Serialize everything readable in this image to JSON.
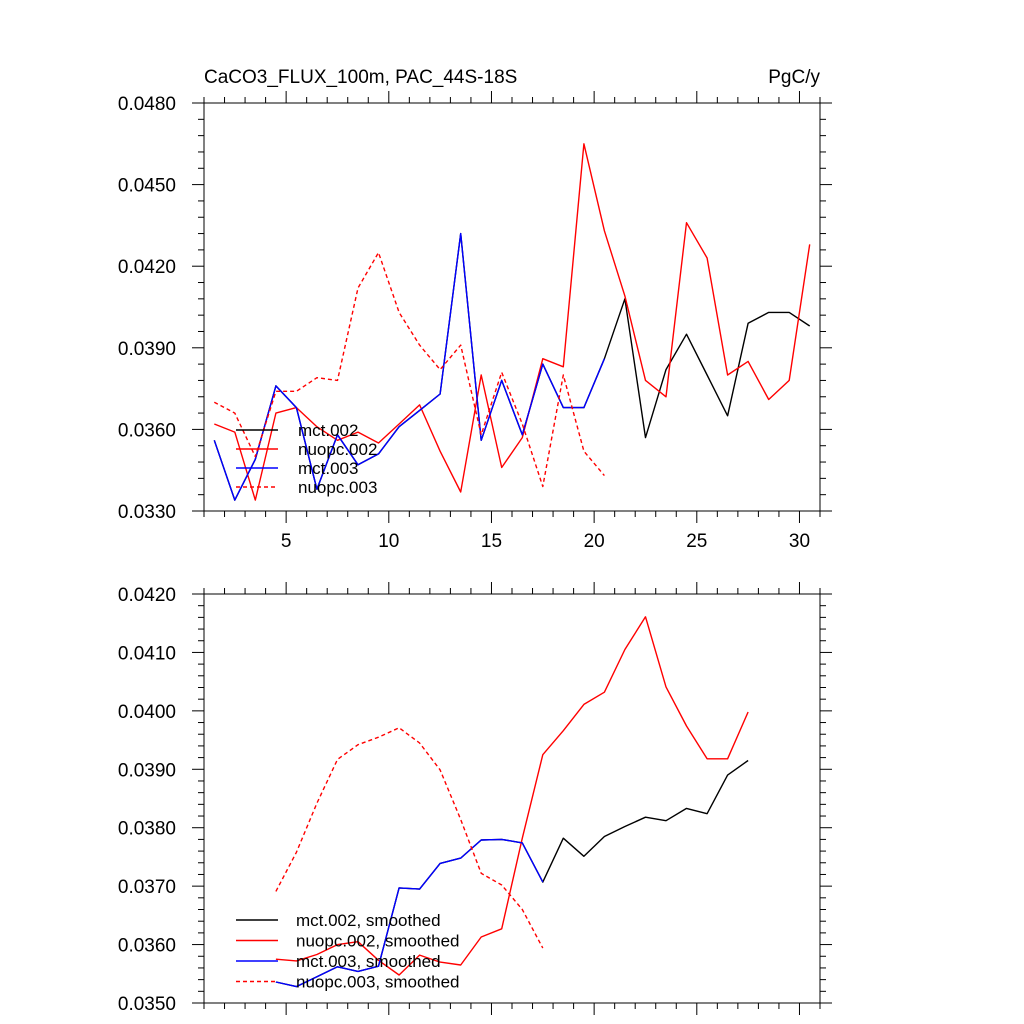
{
  "chart_data": [
    {
      "type": "line",
      "title": "CaCO3_FLUX_100m, PAC_44S-18S",
      "units_label": "PgC/y",
      "xlabel": "",
      "ylabel": "",
      "xlim": [
        1,
        31
      ],
      "ylim": [
        0.033,
        0.048
      ],
      "xticks": [
        5,
        10,
        15,
        20,
        25,
        30
      ],
      "xtick_labels": [
        "5",
        "10",
        "15",
        "20",
        "25",
        "30"
      ],
      "yticks": [
        0.033,
        0.036,
        0.039,
        0.042,
        0.045,
        0.048
      ],
      "ytick_labels": [
        "0.0330",
        "0.0360",
        "0.0390",
        "0.0420",
        "0.0450",
        "0.0480"
      ],
      "grid": false,
      "legend_position": "lower-left",
      "series": [
        {
          "name": "mct.002",
          "color": "#000000",
          "dash": "solid",
          "x": [
            1.5,
            2.5,
            3.5,
            4.5,
            5.5,
            6.5,
            7.5,
            8.5,
            9.5,
            10.5,
            11.5,
            12.5,
            13.5,
            14.5,
            15.5,
            16.5,
            17.5,
            18.5,
            19.5,
            20.5,
            21.5,
            22.5,
            23.5,
            24.5,
            25.5,
            26.5,
            27.5,
            28.5,
            29.5,
            30.5
          ],
          "values": [
            0.0356,
            0.0334,
            0.0349,
            0.0376,
            0.0368,
            0.0338,
            0.0358,
            0.0347,
            0.0351,
            0.0361,
            0.0367,
            0.0373,
            0.0432,
            0.0356,
            0.0378,
            0.0358,
            0.0384,
            0.0368,
            0.0368,
            0.0386,
            0.0408,
            0.0357,
            0.0382,
            0.0395,
            0.038,
            0.0365,
            0.0399,
            0.0403,
            0.0403,
            0.0398
          ]
        },
        {
          "name": "nuopc.002",
          "color": "#ff0000",
          "dash": "solid",
          "x": [
            1.5,
            2.5,
            3.5,
            4.5,
            5.5,
            6.5,
            7.5,
            8.5,
            9.5,
            10.5,
            11.5,
            12.5,
            13.5,
            14.5,
            15.5,
            16.5,
            17.5,
            18.5,
            19.5,
            20.5,
            21.5,
            22.5,
            23.5,
            24.5,
            25.5,
            26.5,
            27.5,
            28.5,
            29.5,
            30.5
          ],
          "values": [
            0.0362,
            0.0359,
            0.0334,
            0.0366,
            0.0368,
            0.0361,
            0.0356,
            0.0359,
            0.0355,
            0.0362,
            0.0369,
            0.0352,
            0.0337,
            0.038,
            0.0346,
            0.0357,
            0.0386,
            0.0383,
            0.0465,
            0.0433,
            0.0409,
            0.0378,
            0.0372,
            0.0436,
            0.0423,
            0.038,
            0.0385,
            0.0371,
            0.0378,
            0.0428
          ]
        },
        {
          "name": "mct.003",
          "color": "#0000ff",
          "dash": "solid",
          "x": [
            1.5,
            2.5,
            3.5,
            4.5,
            5.5,
            6.5,
            7.5,
            8.5,
            9.5,
            10.5,
            11.5,
            12.5,
            13.5,
            14.5,
            15.5,
            16.5,
            17.5,
            18.5,
            19.5,
            20.5
          ],
          "values": [
            0.0356,
            0.0334,
            0.0349,
            0.0376,
            0.0368,
            0.0338,
            0.0358,
            0.0347,
            0.0351,
            0.0361,
            0.0367,
            0.0373,
            0.0432,
            0.0356,
            0.0378,
            0.0358,
            0.0384,
            0.0368,
            0.0368,
            0.0386
          ]
        },
        {
          "name": "nuopc.003",
          "color": "#ff0000",
          "dash": "dashed",
          "x": [
            1.5,
            2.5,
            3.5,
            4.5,
            5.5,
            6.5,
            7.5,
            8.5,
            9.5,
            10.5,
            11.5,
            12.5,
            13.5,
            14.5,
            15.5,
            16.5,
            17.5,
            18.5,
            19.5,
            20.5
          ],
          "values": [
            0.037,
            0.0366,
            0.035,
            0.0374,
            0.0374,
            0.0379,
            0.0378,
            0.0412,
            0.0425,
            0.0403,
            0.0391,
            0.0382,
            0.0391,
            0.0358,
            0.0381,
            0.0362,
            0.0339,
            0.038,
            0.0352,
            0.0343
          ]
        }
      ]
    },
    {
      "type": "line",
      "title": "",
      "xlabel": "",
      "ylabel": "",
      "xlim": [
        1,
        31
      ],
      "ylim": [
        0.035,
        0.042
      ],
      "xticks": [
        5,
        10,
        15,
        20,
        25,
        30
      ],
      "xtick_labels": [],
      "yticks": [
        0.035,
        0.036,
        0.037,
        0.038,
        0.039,
        0.04,
        0.041,
        0.042
      ],
      "ytick_labels": [
        "0.0350",
        "0.0360",
        "0.0370",
        "0.0380",
        "0.0390",
        "0.0400",
        "0.0410",
        "0.0420"
      ],
      "grid": false,
      "legend_position": "lower-left",
      "series": [
        {
          "name": "mct.002, smoothed",
          "color": "#000000",
          "dash": "solid",
          "x": [
            4.5,
            5.5,
            6.5,
            7.5,
            8.5,
            9.5,
            10.5,
            11.5,
            12.5,
            13.5,
            14.5,
            15.5,
            16.5,
            17.5,
            18.5,
            19.5,
            20.5,
            21.5,
            22.5,
            23.5,
            24.5,
            25.5,
            26.5,
            27.5
          ],
          "values": [
            0.03536,
            0.03528,
            0.03545,
            0.03562,
            0.03554,
            0.03563,
            0.03697,
            0.03695,
            0.03739,
            0.03748,
            0.03779,
            0.0378,
            0.03774,
            0.03707,
            0.03782,
            0.03751,
            0.03785,
            0.03802,
            0.03818,
            0.03812,
            0.03833,
            0.03824,
            0.0389,
            0.03915
          ]
        },
        {
          "name": "nuopc.002, smoothed",
          "color": "#ff0000",
          "dash": "solid",
          "x": [
            4.5,
            5.5,
            6.5,
            7.5,
            8.5,
            9.5,
            10.5,
            11.5,
            12.5,
            13.5,
            14.5,
            15.5,
            16.5,
            17.5,
            18.5,
            19.5,
            20.5,
            21.5,
            22.5,
            23.5,
            24.5,
            25.5,
            26.5,
            27.5
          ],
          "values": [
            0.03575,
            0.03572,
            0.03583,
            0.036,
            0.03605,
            0.03573,
            0.03548,
            0.03582,
            0.0357,
            0.03565,
            0.03613,
            0.03627,
            0.03782,
            0.03925,
            0.03966,
            0.04011,
            0.04032,
            0.04105,
            0.04161,
            0.04041,
            0.03974,
            0.03918,
            0.03918,
            0.03998
          ]
        },
        {
          "name": "mct.003, smoothed",
          "color": "#0000ff",
          "dash": "solid",
          "x": [
            4.5,
            5.5,
            6.5,
            7.5,
            8.5,
            9.5,
            10.5,
            11.5,
            12.5,
            13.5,
            14.5,
            15.5,
            16.5,
            17.5
          ],
          "values": [
            0.03536,
            0.03528,
            0.03545,
            0.03562,
            0.03554,
            0.03563,
            0.03697,
            0.03695,
            0.03739,
            0.03748,
            0.03779,
            0.0378,
            0.03774,
            0.03707
          ]
        },
        {
          "name": "nuopc.003, smoothed",
          "color": "#ff0000",
          "dash": "dashed",
          "x": [
            4.5,
            5.5,
            6.5,
            7.5,
            8.5,
            9.5,
            10.5,
            11.5,
            12.5,
            13.5,
            14.5,
            15.5,
            16.5,
            17.5
          ],
          "values": [
            0.03691,
            0.03758,
            0.03842,
            0.03917,
            0.03942,
            0.03955,
            0.03971,
            0.03945,
            0.03899,
            0.03814,
            0.03722,
            0.03702,
            0.0366,
            0.03594
          ]
        }
      ]
    }
  ]
}
